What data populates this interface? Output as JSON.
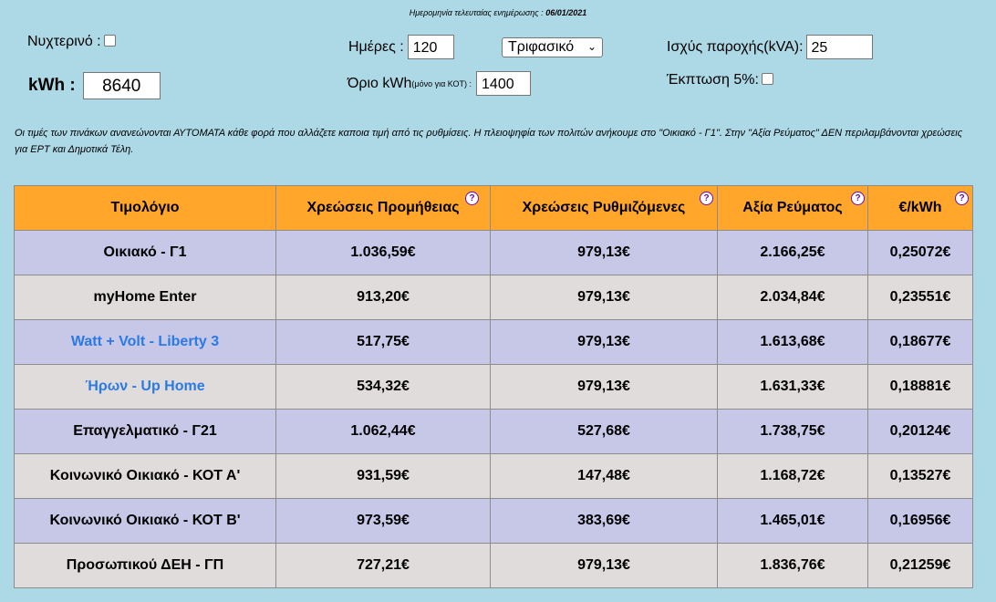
{
  "header": {
    "last_update_label": "Ημερομηνία τελευταίας ενημέρωσης :",
    "last_update_date": "06/01/2021"
  },
  "controls": {
    "night_label": "Νυχτερινό :",
    "kwh_label": "kWh :",
    "kwh_value": "8640",
    "days_label": "Ημέρες :",
    "days_value": "120",
    "phase_select": "Τριφασικό",
    "limit_label": "Όριο kWh",
    "limit_small": "(μόνο για ΚΟΤ) :",
    "limit_value": "1400",
    "power_label": "Ισχύς παροχής(kVA):",
    "power_value": "25",
    "discount_label": "Έκπτωση 5%:"
  },
  "note": "Οι τιμές των πινάκων ανανεώνονται ΑΥΤΟΜΑΤΑ κάθε φορά που αλλάζετε  καποια τιμή από τις ρυθμίσεις. Η πλειοψηφία των πολιτών ανήκουμε στο \"Οικιακό - Γ1\".   Στην \"Αξία Ρεύματος\" ΔΕΝ περιλαμβάνονται χρεώσεις για ΕΡΤ και Δημοτικά Τέλη.",
  "table": {
    "headers": [
      "Τιμολόγιο",
      "Χρεώσεις Προμήθειας",
      "Χρεώσεις Ρυθμιζόμενες",
      "Αξία Ρεύματος",
      "€/kWh"
    ],
    "help_icon": "?",
    "rows": [
      [
        "Οικιακό - Γ1",
        "1.036,59€",
        "979,13€",
        "2.166,25€",
        "0,25072€"
      ],
      [
        "myHome Enter",
        "913,20€",
        "979,13€",
        "2.034,84€",
        "0,23551€"
      ],
      [
        "Watt + Volt - Liberty 3",
        "517,75€",
        "979,13€",
        "1.613,68€",
        "0,18677€"
      ],
      [
        "Ήρων - Up Home",
        "534,32€",
        "979,13€",
        "1.631,33€",
        "0,18881€"
      ],
      [
        "Επαγγελματικό - Γ21",
        "1.062,44€",
        "527,68€",
        "1.738,75€",
        "0,20124€"
      ],
      [
        "Κοινωνικό Οικιακό - ΚΟΤ Α'",
        "931,59€",
        "147,48€",
        "1.168,72€",
        "0,13527€"
      ],
      [
        "Κοινωνικό Οικιακό - ΚΟΤ Β'",
        "973,59€",
        "383,69€",
        "1.465,01€",
        "0,16956€"
      ],
      [
        "Προσωπικού ΔΕΗ - ΓΠ",
        "727,21€",
        "979,13€",
        "1.836,76€",
        "0,21259€"
      ]
    ]
  },
  "colors": {
    "background": "#add8e6",
    "header": "#ffa62b",
    "row_odd": "#c7c7e8",
    "row_even": "#e1dcdc",
    "link": "#2a7ae4",
    "help_icon": "#6a0dad"
  }
}
